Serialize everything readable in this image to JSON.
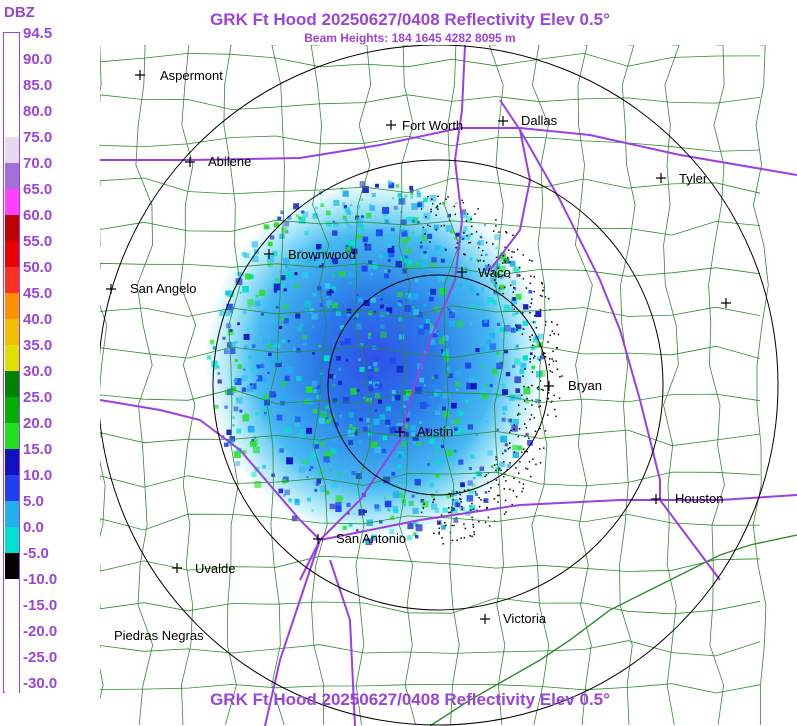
{
  "header": {
    "title": "GRK Ft Hood 20250627/0408 Reflectivity Elev 0.5°",
    "subtitle": "Beam Heights: 184 1645 4282 8095 m",
    "footer_title": "GRK Ft Hood 20250627/0408 Reflectivity Elev 0.5°"
  },
  "legend": {
    "unit": "DBZ",
    "entries": [
      {
        "label": "94.5",
        "color": "#ffffff"
      },
      {
        "label": "90.0",
        "color": "#ffffff"
      },
      {
        "label": "85.0",
        "color": "#ffffff"
      },
      {
        "label": "80.0",
        "color": "#ffffff"
      },
      {
        "label": "75.0",
        "color": "#e8d8f0"
      },
      {
        "label": "70.0",
        "color": "#a070d8"
      },
      {
        "label": "65.0",
        "color": "#ff40ff"
      },
      {
        "label": "60.0",
        "color": "#c00000"
      },
      {
        "label": "55.0",
        "color": "#e80000"
      },
      {
        "label": "50.0",
        "color": "#ff3020"
      },
      {
        "label": "45.0",
        "color": "#ff9000"
      },
      {
        "label": "40.0",
        "color": "#f0c000"
      },
      {
        "label": "35.0",
        "color": "#e0e000"
      },
      {
        "label": "30.0",
        "color": "#008000"
      },
      {
        "label": "25.0",
        "color": "#00b000"
      },
      {
        "label": "20.0",
        "color": "#20e020"
      },
      {
        "label": "15.0",
        "color": "#1010c0"
      },
      {
        "label": "10.0",
        "color": "#2040f0"
      },
      {
        "label": "5.0",
        "color": "#20b0f0"
      },
      {
        "label": "0.0",
        "color": "#00e0d0"
      },
      {
        "label": "-5.0",
        "color": "#000000"
      },
      {
        "label": "-10.0",
        "color": "#ffffff"
      },
      {
        "label": "-15.0",
        "color": "#ffffff"
      },
      {
        "label": "-20.0",
        "color": "#ffffff"
      },
      {
        "label": "-25.0",
        "color": "#ffffff"
      },
      {
        "label": "-30.0",
        "color": "#ffffff"
      }
    ]
  },
  "cities": [
    {
      "name": "Aspermont"
    },
    {
      "name": "Fort Worth"
    },
    {
      "name": "Dallas"
    },
    {
      "name": "Abilene"
    },
    {
      "name": "Tyler"
    },
    {
      "name": "Brownwood"
    },
    {
      "name": "Waco"
    },
    {
      "name": "San Angelo"
    },
    {
      "name": "Bryan"
    },
    {
      "name": "Austin"
    },
    {
      "name": "Houston"
    },
    {
      "name": "San Antonio"
    },
    {
      "name": "Uvalde"
    },
    {
      "name": "Victoria"
    },
    {
      "name": "Piedras Negras"
    }
  ],
  "colors": {
    "title": "#9a44d8",
    "county_lines": "#2e8b2e",
    "highways": "#9b3fe0",
    "range_rings": "#000000"
  }
}
